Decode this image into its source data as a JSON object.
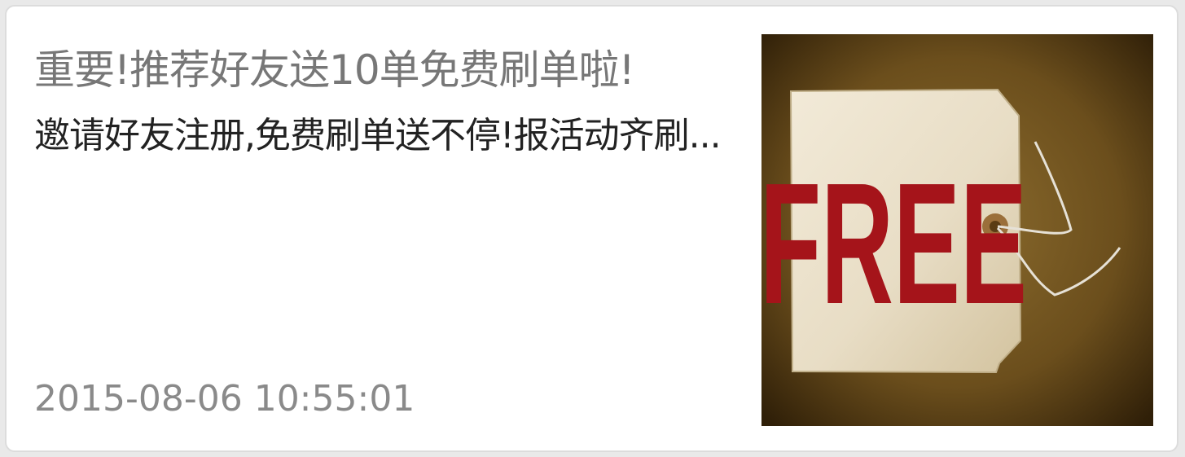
{
  "article": {
    "title": "重要!推荐好友送10单免费刷单啦!",
    "summary": "邀请好友注册,免费刷单送不停!报活动齐刷...",
    "timestamp": "2015-08-06 10:55:01"
  },
  "thumbnail": {
    "tag_text": "FREE",
    "colors": {
      "background": "#6b4e1c",
      "tag": "#ece3cf",
      "text": "#a5141a"
    }
  }
}
